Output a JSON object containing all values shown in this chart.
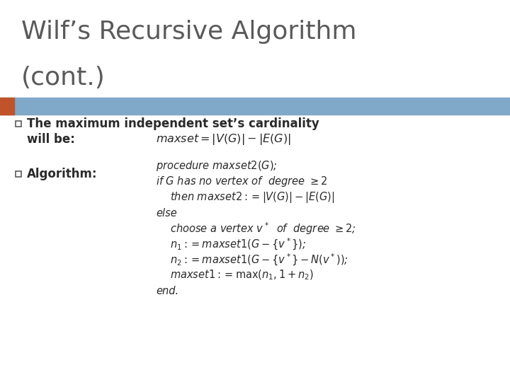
{
  "title_line1": "Wilf’s Recursive Algorithm",
  "title_line2": "(cont.)",
  "title_color": "#5a5a5a",
  "title_fontsize": 26,
  "header_bar_color": "#7fa8c9",
  "header_bar_left_color": "#c0532a",
  "bg_color": "#ffffff",
  "bullet_color": "#2a2a2a",
  "bullet_sq_color": "#5a5a5a",
  "algo_lines": [
    [
      "procedure $maxset2(G)$;",
      0
    ],
    [
      "if $G$ has no vertex of  degree $\\geq 2$",
      0
    ],
    [
      "then $maxset2 := |V(G)| - |E(G)|$",
      20
    ],
    [
      "else",
      0
    ],
    [
      "choose a vertex $v^*$  of  degree $\\geq 2$;",
      20
    ],
    [
      "$n_1 := maxset1(G - \\{v^*\\})$;",
      20
    ],
    [
      "$n_2 := maxset1(G - \\{v^*\\} - N(v^*))$;",
      20
    ],
    [
      "$maxset1 := \\max(n_1, 1 + n_2)$",
      20
    ],
    [
      "end.",
      0
    ]
  ]
}
